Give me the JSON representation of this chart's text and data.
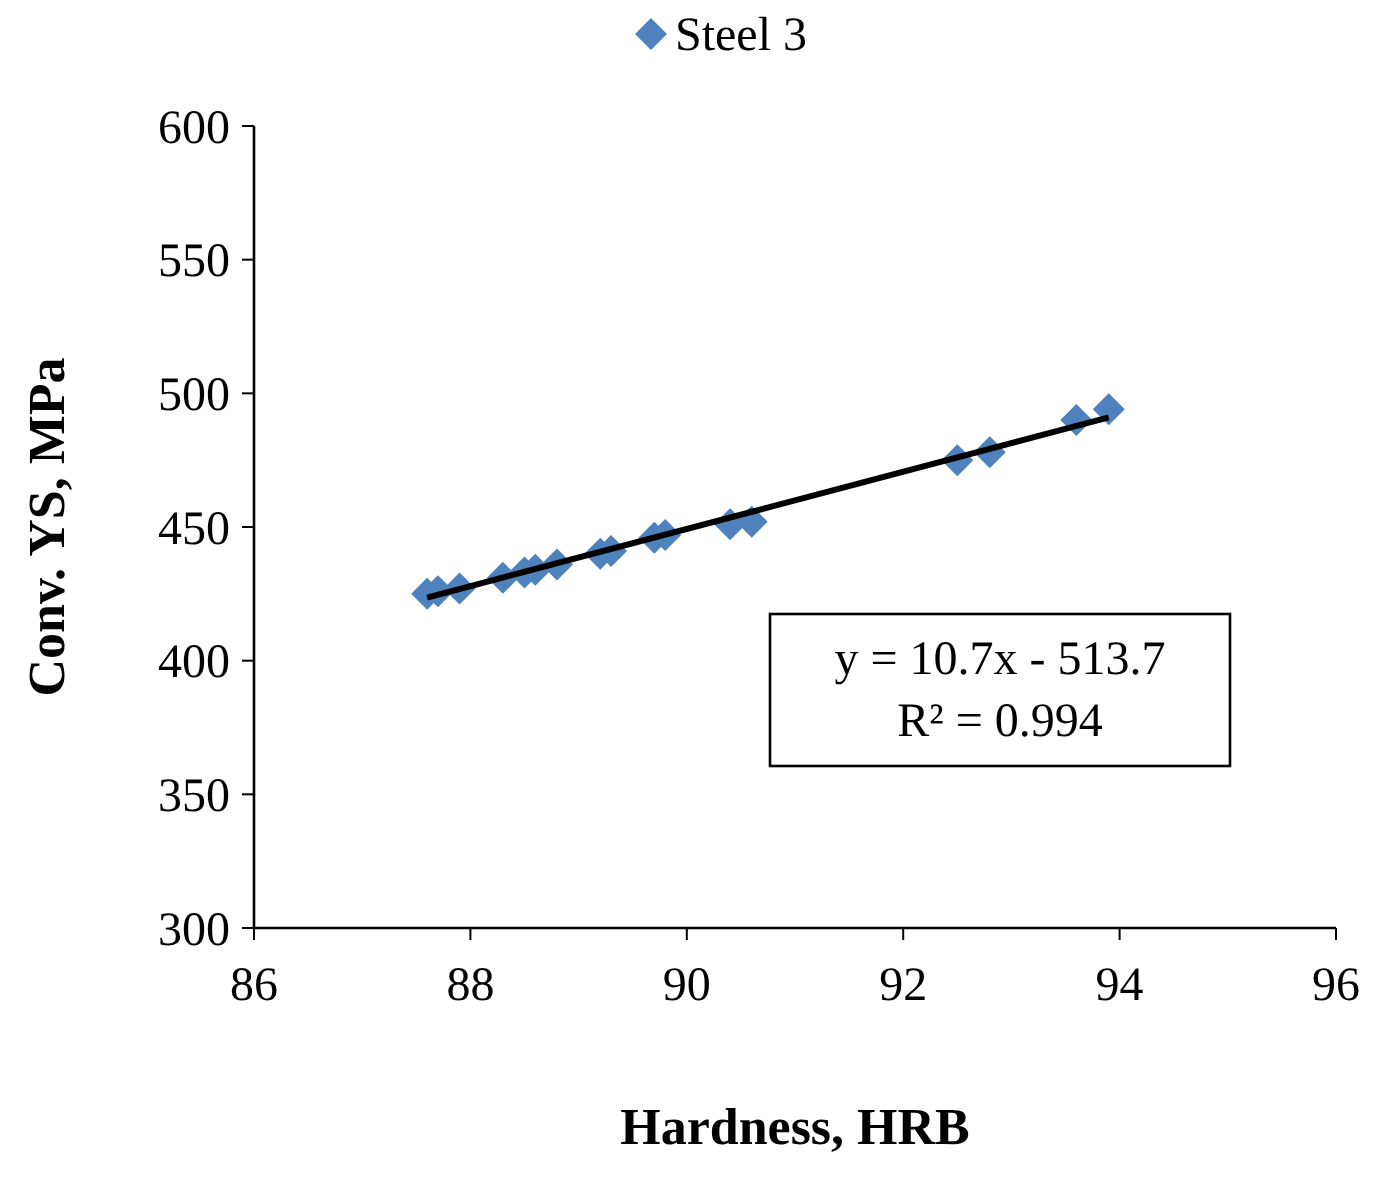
{
  "chart_data": {
    "type": "scatter",
    "xlabel": "Hardness, HRB",
    "ylabel": "Conv. YS, MPa",
    "xlim": [
      86,
      96
    ],
    "xticks": [
      86,
      88,
      90,
      92,
      94,
      96
    ],
    "ylim": [
      300,
      600
    ],
    "yticks": [
      300,
      350,
      400,
      450,
      500,
      550,
      600
    ],
    "legend": "top",
    "marker": "diamond",
    "grid": false,
    "annotations": [
      "y = 10.7x - 513.7",
      "R² = 0.994"
    ],
    "series": [
      {
        "name": "Steel 3",
        "color": "#4f81bd",
        "x": [
          87.6,
          87.7,
          87.9,
          88.3,
          88.5,
          88.6,
          88.8,
          89.2,
          89.3,
          89.7,
          89.8,
          90.4,
          90.6,
          92.5,
          92.8,
          93.6,
          93.9
        ],
        "values": [
          425,
          426,
          427,
          431,
          433,
          434,
          436,
          440,
          441,
          446,
          447,
          451,
          452,
          475,
          478,
          490,
          494
        ]
      },
      {
        "type": "line",
        "color": "#000000",
        "marker": "none",
        "x": [
          87.6,
          93.9
        ],
        "values": [
          423.6,
          491.0
        ]
      }
    ]
  }
}
